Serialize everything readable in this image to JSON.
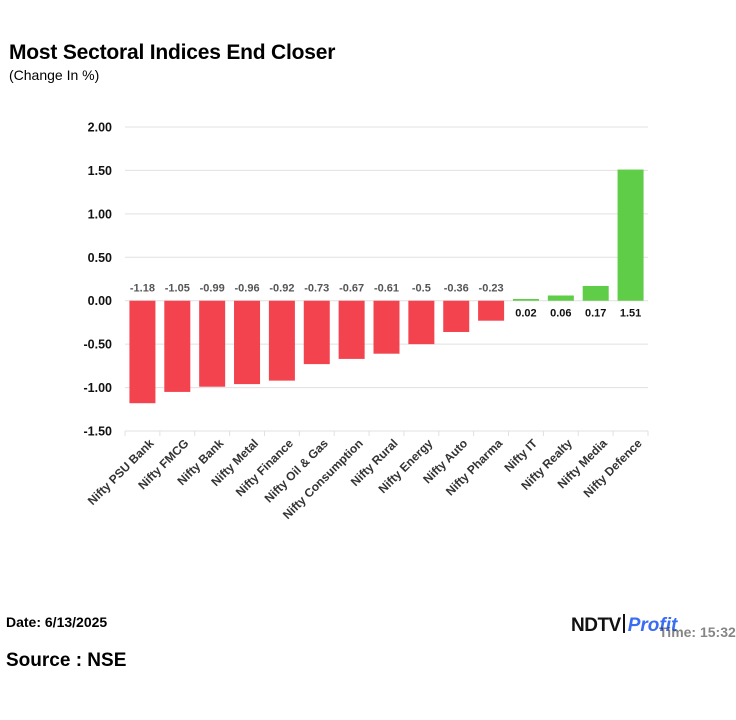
{
  "header": {
    "title": "Most Sectoral Indices End Closer",
    "subtitle": "(Change In %)"
  },
  "footer": {
    "date_label": "Date: 6/13/2025",
    "source_label": "Source : NSE",
    "time_label": "Time: 15:32",
    "logo_ndtv": "NDTV",
    "logo_profit": "Profit"
  },
  "colors": {
    "negative": "#f3434e",
    "positive": "#5fcd48",
    "grid": "#e0e0e0",
    "label": "#555555",
    "axis_text": "#111111"
  },
  "chart_data": {
    "type": "bar",
    "title": "Most Sectoral Indices End Closer",
    "ylabel": "(Change In %)",
    "xlabel": "",
    "ylim": [
      -1.5,
      2.0
    ],
    "yticks": [
      2.0,
      1.5,
      1.0,
      0.5,
      0.0,
      -0.5,
      -1.0,
      -1.5
    ],
    "ytick_labels": [
      "2.00",
      "1.50",
      "1.00",
      "0.50",
      "0.00",
      "-0.50",
      "-1.00",
      "-1.50"
    ],
    "grid": true,
    "categories": [
      "Nifty PSU Bank",
      "Nifty FMCG",
      "Nifty Bank",
      "Nifty Metal",
      "Nifty Finance",
      "Nifty Oil & Gas",
      "Nifty Consumption",
      "Nifty Rural",
      "Nifty Energy",
      "Nifty Auto",
      "Nifty Pharma",
      "Nifty IT",
      "Nifty Realty",
      "Nifty Media",
      "Nifty Defence"
    ],
    "values": [
      -1.18,
      -1.05,
      -0.99,
      -0.96,
      -0.92,
      -0.73,
      -0.67,
      -0.61,
      -0.5,
      -0.36,
      -0.23,
      0.02,
      0.06,
      0.17,
      1.51
    ],
    "value_labels": [
      "-1.18",
      "-1.05",
      "-0.99",
      "-0.96",
      "-0.92",
      "-0.73",
      "-0.67",
      "-0.61",
      "-0.5",
      "-0.36",
      "-0.23",
      "0.02",
      "0.06",
      "0.17",
      "1.51"
    ]
  }
}
